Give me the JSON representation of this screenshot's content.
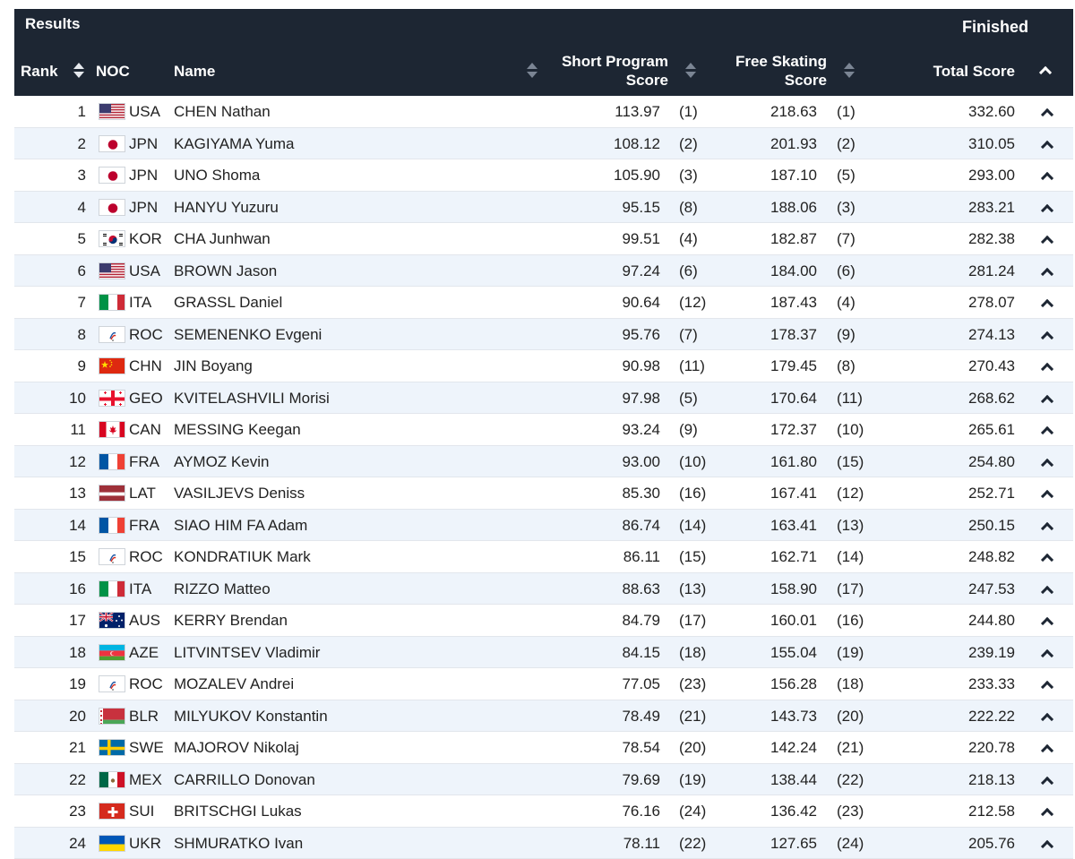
{
  "header": {
    "title": "Results",
    "status": "Finished",
    "columns": {
      "rank": "Rank",
      "noc": "NOC",
      "name": "Name",
      "short_program": "Short Program Score",
      "free_skating": "Free Skating Score",
      "total": "Total Score"
    }
  },
  "colors": {
    "header_bg": "#1d2633",
    "row_alt_bg": "#eef4fb",
    "row_bg": "#ffffff"
  },
  "rows": [
    {
      "rank": "1",
      "noc": "USA",
      "name": "CHEN Nathan",
      "sp": "113.97",
      "sp_rank": "(1)",
      "fs": "218.63",
      "fs_rank": "(1)",
      "total": "332.60",
      "flag": "usa-flag"
    },
    {
      "rank": "2",
      "noc": "JPN",
      "name": "KAGIYAMA Yuma",
      "sp": "108.12",
      "sp_rank": "(2)",
      "fs": "201.93",
      "fs_rank": "(2)",
      "total": "310.05",
      "flag": "jpn-flag"
    },
    {
      "rank": "3",
      "noc": "JPN",
      "name": "UNO Shoma",
      "sp": "105.90",
      "sp_rank": "(3)",
      "fs": "187.10",
      "fs_rank": "(5)",
      "total": "293.00",
      "flag": "jpn-flag"
    },
    {
      "rank": "4",
      "noc": "JPN",
      "name": "HANYU Yuzuru",
      "sp": "95.15",
      "sp_rank": "(8)",
      "fs": "188.06",
      "fs_rank": "(3)",
      "total": "283.21",
      "flag": "jpn-flag"
    },
    {
      "rank": "5",
      "noc": "KOR",
      "name": "CHA Junhwan",
      "sp": "99.51",
      "sp_rank": "(4)",
      "fs": "182.87",
      "fs_rank": "(7)",
      "total": "282.38",
      "flag": "kor-flag"
    },
    {
      "rank": "6",
      "noc": "USA",
      "name": "BROWN Jason",
      "sp": "97.24",
      "sp_rank": "(6)",
      "fs": "184.00",
      "fs_rank": "(6)",
      "total": "281.24",
      "flag": "usa-flag"
    },
    {
      "rank": "7",
      "noc": "ITA",
      "name": "GRASSL Daniel",
      "sp": "90.64",
      "sp_rank": "(12)",
      "fs": "187.43",
      "fs_rank": "(4)",
      "total": "278.07",
      "flag": "ita-flag"
    },
    {
      "rank": "8",
      "noc": "ROC",
      "name": "SEMENENKO Evgeni",
      "sp": "95.76",
      "sp_rank": "(7)",
      "fs": "178.37",
      "fs_rank": "(9)",
      "total": "274.13",
      "flag": "roc-flag"
    },
    {
      "rank": "9",
      "noc": "CHN",
      "name": "JIN Boyang",
      "sp": "90.98",
      "sp_rank": "(11)",
      "fs": "179.45",
      "fs_rank": "(8)",
      "total": "270.43",
      "flag": "chn-flag"
    },
    {
      "rank": "10",
      "noc": "GEO",
      "name": "KVITELASHVILI Morisi",
      "sp": "97.98",
      "sp_rank": "(5)",
      "fs": "170.64",
      "fs_rank": "(11)",
      "total": "268.62",
      "flag": "geo-flag"
    },
    {
      "rank": "11",
      "noc": "CAN",
      "name": "MESSING Keegan",
      "sp": "93.24",
      "sp_rank": "(9)",
      "fs": "172.37",
      "fs_rank": "(10)",
      "total": "265.61",
      "flag": "can-flag"
    },
    {
      "rank": "12",
      "noc": "FRA",
      "name": "AYMOZ Kevin",
      "sp": "93.00",
      "sp_rank": "(10)",
      "fs": "161.80",
      "fs_rank": "(15)",
      "total": "254.80",
      "flag": "fra-flag"
    },
    {
      "rank": "13",
      "noc": "LAT",
      "name": "VASILJEVS Deniss",
      "sp": "85.30",
      "sp_rank": "(16)",
      "fs": "167.41",
      "fs_rank": "(12)",
      "total": "252.71",
      "flag": "lat-flag"
    },
    {
      "rank": "14",
      "noc": "FRA",
      "name": "SIAO HIM FA Adam",
      "sp": "86.74",
      "sp_rank": "(14)",
      "fs": "163.41",
      "fs_rank": "(13)",
      "total": "250.15",
      "flag": "fra-flag"
    },
    {
      "rank": "15",
      "noc": "ROC",
      "name": "KONDRATIUK Mark",
      "sp": "86.11",
      "sp_rank": "(15)",
      "fs": "162.71",
      "fs_rank": "(14)",
      "total": "248.82",
      "flag": "roc-flag"
    },
    {
      "rank": "16",
      "noc": "ITA",
      "name": "RIZZO Matteo",
      "sp": "88.63",
      "sp_rank": "(13)",
      "fs": "158.90",
      "fs_rank": "(17)",
      "total": "247.53",
      "flag": "ita-flag"
    },
    {
      "rank": "17",
      "noc": "AUS",
      "name": "KERRY Brendan",
      "sp": "84.79",
      "sp_rank": "(17)",
      "fs": "160.01",
      "fs_rank": "(16)",
      "total": "244.80",
      "flag": "aus-flag"
    },
    {
      "rank": "18",
      "noc": "AZE",
      "name": "LITVINTSEV Vladimir",
      "sp": "84.15",
      "sp_rank": "(18)",
      "fs": "155.04",
      "fs_rank": "(19)",
      "total": "239.19",
      "flag": "aze-flag"
    },
    {
      "rank": "19",
      "noc": "ROC",
      "name": "MOZALEV Andrei",
      "sp": "77.05",
      "sp_rank": "(23)",
      "fs": "156.28",
      "fs_rank": "(18)",
      "total": "233.33",
      "flag": "roc-flag"
    },
    {
      "rank": "20",
      "noc": "BLR",
      "name": "MILYUKOV Konstantin",
      "sp": "78.49",
      "sp_rank": "(21)",
      "fs": "143.73",
      "fs_rank": "(20)",
      "total": "222.22",
      "flag": "blr-flag"
    },
    {
      "rank": "21",
      "noc": "SWE",
      "name": "MAJOROV Nikolaj",
      "sp": "78.54",
      "sp_rank": "(20)",
      "fs": "142.24",
      "fs_rank": "(21)",
      "total": "220.78",
      "flag": "swe-flag"
    },
    {
      "rank": "22",
      "noc": "MEX",
      "name": "CARRILLO Donovan",
      "sp": "79.69",
      "sp_rank": "(19)",
      "fs": "138.44",
      "fs_rank": "(22)",
      "total": "218.13",
      "flag": "mex-flag"
    },
    {
      "rank": "23",
      "noc": "SUI",
      "name": "BRITSCHGI Lukas",
      "sp": "76.16",
      "sp_rank": "(24)",
      "fs": "136.42",
      "fs_rank": "(23)",
      "total": "212.58",
      "flag": "sui-flag"
    },
    {
      "rank": "24",
      "noc": "UKR",
      "name": "SHMURATKO Ivan",
      "sp": "78.11",
      "sp_rank": "(22)",
      "fs": "127.65",
      "fs_rank": "(24)",
      "total": "205.76",
      "flag": "ukr-flag"
    }
  ]
}
